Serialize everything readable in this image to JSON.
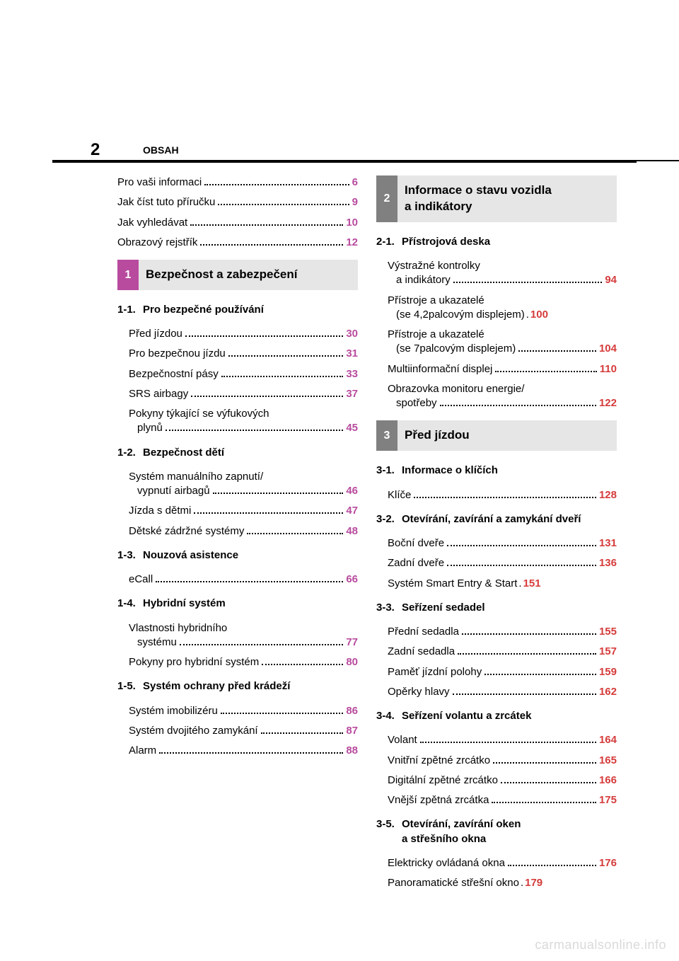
{
  "page_number": "2",
  "header_label": "OBSAH",
  "accent_colors": {
    "intro_pg": "#b84b9e",
    "ch1_pg": "#b84b9e",
    "ch2_pg": "#d63b3b",
    "ch3_pg": "#d63b3b",
    "ch1_tab": "#b84b9e",
    "ch2_tab": "#808080",
    "ch3_tab": "#808080"
  },
  "intro": [
    {
      "label": "Pro vaši informaci",
      "pg": "6"
    },
    {
      "label": "Jak číst tuto příručku",
      "pg": "9"
    },
    {
      "label": "Jak vyhledávat",
      "pg": "10"
    },
    {
      "label": "Obrazový rejstřík",
      "pg": "12"
    }
  ],
  "ch1": {
    "num": "1",
    "title": "Bezpečnost a zabezpečení",
    "sections": [
      {
        "num": "1-1.",
        "title": "Pro bezpečné používání",
        "items": [
          {
            "label": "Před jízdou",
            "pg": "30"
          },
          {
            "label": "Pro bezpečnou jízdu",
            "pg": "31"
          },
          {
            "label": "Bezpečnostní pásy",
            "pg": "33"
          },
          {
            "label": "SRS airbagy",
            "pg": "37"
          },
          {
            "label": "Pokyny týkající se výfukových",
            "cont": "plynů",
            "pg": "45"
          }
        ]
      },
      {
        "num": "1-2.",
        "title": "Bezpečnost dětí",
        "items": [
          {
            "label": "Systém manuálního zapnutí/",
            "cont": "vypnutí airbagů",
            "pg": "46"
          },
          {
            "label": "Jízda s dětmi",
            "pg": "47"
          },
          {
            "label": "Dětské zádržné systémy",
            "pg": "48"
          }
        ]
      },
      {
        "num": "1-3.",
        "title": "Nouzová asistence",
        "items": [
          {
            "label": "eCall",
            "pg": "66"
          }
        ]
      },
      {
        "num": "1-4.",
        "title": "Hybridní systém",
        "items": [
          {
            "label": "Vlastnosti hybridního",
            "cont": "systému",
            "pg": "77"
          },
          {
            "label": "Pokyny pro hybridní systém",
            "pg": "80"
          }
        ]
      },
      {
        "num": "1-5.",
        "title": "Systém ochrany před krádeží",
        "items": [
          {
            "label": "Systém imobilizéru",
            "pg": "86"
          },
          {
            "label": "Systém dvojitého zamykání",
            "pg": "87"
          },
          {
            "label": "Alarm",
            "pg": "88"
          }
        ]
      }
    ]
  },
  "ch2": {
    "num": "2",
    "title_l1": "Informace o stavu vozidla",
    "title_l2": "a indikátory",
    "sections": [
      {
        "num": "2-1.",
        "title": "Přístrojová deska",
        "items": [
          {
            "label": "Výstražné kontrolky",
            "cont": "a indikátory",
            "pg": "94"
          },
          {
            "label": "Přístroje a ukazatelé",
            "cont": "(se 4,2palcovým displejem)",
            "pg": "100",
            "nodots": true
          },
          {
            "label": "Přístroje a ukazatelé",
            "cont": "(se 7palcovým displejem)",
            "pg": "104"
          },
          {
            "label": "Multiinformační displej",
            "pg": "110"
          },
          {
            "label": "Obrazovka monitoru energie/",
            "cont": "spotřeby",
            "pg": "122"
          }
        ]
      }
    ]
  },
  "ch3": {
    "num": "3",
    "title": "Před jízdou",
    "sections": [
      {
        "num": "3-1.",
        "title": "Informace o klíčích",
        "items": [
          {
            "label": "Klíče",
            "pg": "128"
          }
        ]
      },
      {
        "num": "3-2.",
        "title": "Otevírání, zavírání a zamykání dveří",
        "items": [
          {
            "label": "Boční dveře",
            "pg": "131"
          },
          {
            "label": "Zadní dveře",
            "pg": "136"
          },
          {
            "label": "Systém Smart Entry & Start",
            "pg": "151",
            "nodots": true,
            "sep": " . "
          }
        ]
      },
      {
        "num": "3-3.",
        "title": "Seřízení sedadel",
        "items": [
          {
            "label": "Přední sedadla",
            "pg": "155"
          },
          {
            "label": "Zadní sedadla",
            "pg": "157"
          },
          {
            "label": "Paměť jízdní polohy",
            "pg": "159"
          },
          {
            "label": "Opěrky hlavy",
            "pg": "162"
          }
        ]
      },
      {
        "num": "3-4.",
        "title": "Seřízení volantu a zrcátek",
        "items": [
          {
            "label": "Volant",
            "pg": "164"
          },
          {
            "label": "Vnitřní zpětné zrcátko",
            "pg": "165"
          },
          {
            "label": "Digitální zpětné zrcátko",
            "pg": "166"
          },
          {
            "label": "Vnější zpětná zrcátka",
            "pg": "175"
          }
        ]
      },
      {
        "num": "3-5.",
        "title": "Otevírání, zavírání oken",
        "title2": "a střešního okna",
        "items": [
          {
            "label": "Elektricky ovládaná okna",
            "pg": "176"
          },
          {
            "label": "Panoramatické střešní okno",
            "pg": "179",
            "nodots": true,
            "sep": ". "
          }
        ]
      }
    ]
  },
  "watermark": "carmanualsonline.info"
}
